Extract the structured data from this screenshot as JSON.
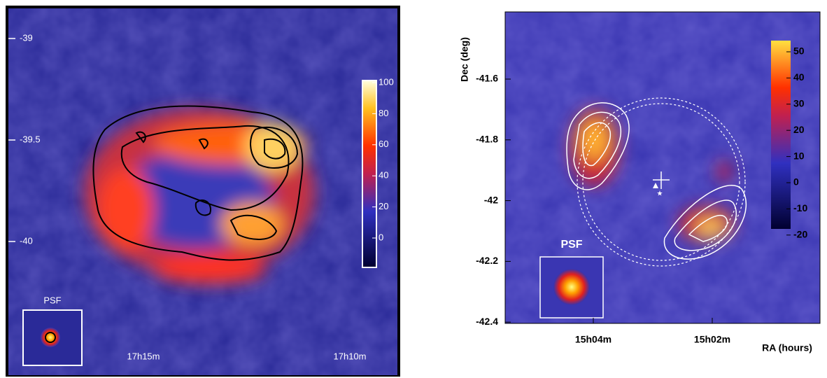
{
  "left": {
    "y_labels": [
      "-39",
      "-39.5",
      "-40"
    ],
    "x_labels": [
      "17h15m",
      "17h10m"
    ],
    "colorbar_labels": [
      "100",
      "80",
      "60",
      "40",
      "20",
      "0"
    ],
    "psf_label": "PSF"
  },
  "right": {
    "y_axis_title": "Dec (deg)",
    "y_labels": [
      "-41.6",
      "-41.8",
      "-42",
      "-42.2",
      "-42.4"
    ],
    "x_labels": [
      "15h04m",
      "15h02m"
    ],
    "x_axis_title": "RA (hours)",
    "colorbar_labels": [
      "50",
      "40",
      "30",
      "20",
      "10",
      "0",
      "-10",
      "-20"
    ],
    "psf_label": "PSF"
  }
}
